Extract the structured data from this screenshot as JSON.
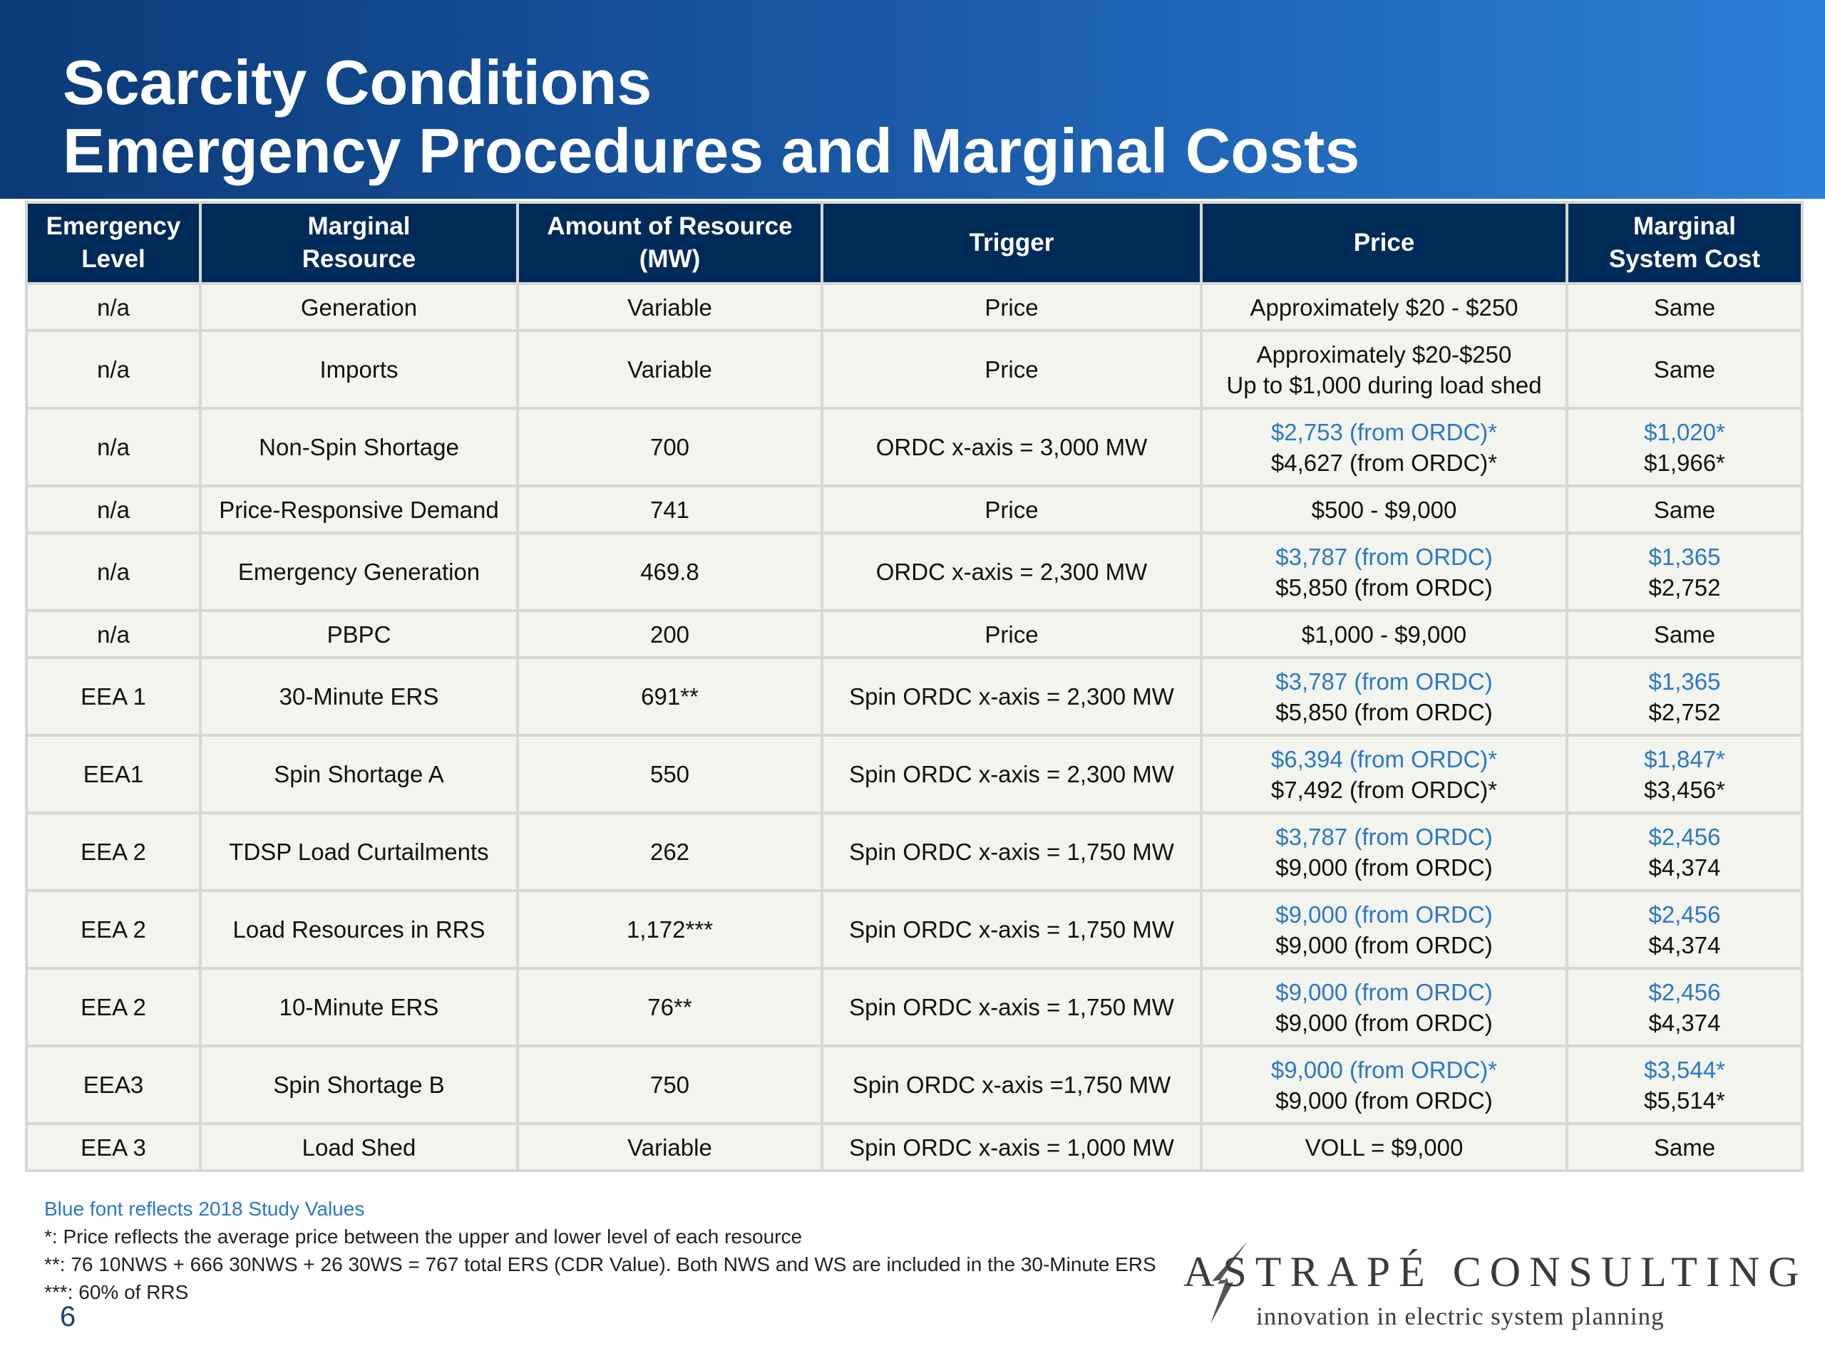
{
  "header": {
    "title_line1": "Scarcity Conditions",
    "title_line2": "Emergency Procedures and Marginal Costs"
  },
  "table": {
    "columns": [
      {
        "line1": "Emergency",
        "line2": "Level"
      },
      {
        "line1": "Marginal",
        "line2": "Resource"
      },
      {
        "line1": "Amount of Resource",
        "line2": "(MW)"
      },
      {
        "line1": "Trigger",
        "line2": ""
      },
      {
        "line1": "Price",
        "line2": ""
      },
      {
        "line1": "Marginal",
        "line2": "System Cost"
      }
    ],
    "rows": [
      {
        "level": "n/a",
        "resource": "Generation",
        "amount": "Variable",
        "trigger": "Price",
        "price_blue": "",
        "price": "Approximately $20 - $250",
        "cost_blue": "",
        "cost": "Same"
      },
      {
        "level": "n/a",
        "resource": "Imports",
        "amount": "Variable",
        "trigger": "Price",
        "price_blue": "",
        "price_line1": "Approximately $20-$250",
        "price": "Up to $1,000 during load shed",
        "cost_blue": "",
        "cost": "Same"
      },
      {
        "level": "n/a",
        "resource": "Non-Spin Shortage",
        "amount": "700",
        "trigger": "ORDC x-axis = 3,000 MW",
        "price_blue": "$2,753 (from ORDC)*",
        "price": "$4,627 (from ORDC)*",
        "cost_blue": "$1,020*",
        "cost": "$1,966*"
      },
      {
        "level": "n/a",
        "resource": "Price-Responsive Demand",
        "amount": "741",
        "trigger": "Price",
        "price_blue": "",
        "price": "$500 - $9,000",
        "cost_blue": "",
        "cost": "Same"
      },
      {
        "level": "n/a",
        "resource": "Emergency Generation",
        "amount": "469.8",
        "trigger": "ORDC x-axis = 2,300 MW",
        "price_blue": "$3,787 (from ORDC)",
        "price": "$5,850 (from ORDC)",
        "cost_blue": "$1,365",
        "cost": "$2,752"
      },
      {
        "level": "n/a",
        "resource": "PBPC",
        "amount": "200",
        "trigger": "Price",
        "price_blue": "",
        "price": "$1,000 - $9,000",
        "cost_blue": "",
        "cost": "Same"
      },
      {
        "level": "EEA 1",
        "resource": "30-Minute ERS",
        "amount": "691**",
        "trigger": "Spin ORDC x-axis = 2,300 MW",
        "price_blue": "$3,787 (from ORDC)",
        "price": "$5,850 (from ORDC)",
        "cost_blue": "$1,365",
        "cost": "$2,752"
      },
      {
        "level": "EEA1",
        "resource": "Spin Shortage A",
        "amount": "550",
        "trigger": "Spin ORDC x-axis = 2,300 MW",
        "price_blue": "$6,394 (from ORDC)*",
        "price": "$7,492 (from ORDC)*",
        "cost_blue": "$1,847*",
        "cost": "$3,456*"
      },
      {
        "level": "EEA 2",
        "resource": "TDSP Load Curtailments",
        "amount": "262",
        "trigger": "Spin ORDC x-axis = 1,750 MW",
        "price_blue": "$3,787 (from ORDC)",
        "price": "$9,000 (from ORDC)",
        "cost_blue": "$2,456",
        "cost": "$4,374"
      },
      {
        "level": "EEA 2",
        "resource": "Load Resources in RRS",
        "amount": "1,172***",
        "trigger": "Spin ORDC x-axis = 1,750 MW",
        "price_blue": "$9,000 (from ORDC)",
        "price": "$9,000 (from ORDC)",
        "cost_blue": "$2,456",
        "cost": "$4,374"
      },
      {
        "level": "EEA 2",
        "resource": "10-Minute ERS",
        "amount": "76**",
        "trigger": "Spin ORDC x-axis = 1,750 MW",
        "price_blue": "$9,000 (from ORDC)",
        "price": "$9,000 (from ORDC)",
        "cost_blue": "$2,456",
        "cost": "$4,374"
      },
      {
        "level": "EEA3",
        "resource": "Spin Shortage B",
        "amount": "750",
        "trigger": "Spin ORDC x-axis =1,750 MW",
        "price_blue": "$9,000 (from ORDC)*",
        "price": "$9,000 (from ORDC)",
        "cost_blue": "$3,544*",
        "cost": "$5,514*"
      },
      {
        "level": "EEA 3",
        "resource": "Load Shed",
        "amount": "Variable",
        "trigger": "Spin ORDC x-axis = 1,000 MW",
        "price_blue": "",
        "price": "VOLL = $9,000",
        "cost_blue": "",
        "cost": "Same"
      }
    ]
  },
  "notes": {
    "blue_note": "Blue font reflects 2018 Study Values",
    "note1": "*: Price reflects the average price between the upper and lower level of each resource",
    "note2": "**: 76 10NWS + 666 30NWS + 26 30WS = 767 total ERS (CDR Value). Both NWS and WS are included in the 30-Minute ERS",
    "note3": "***: 60% of RRS"
  },
  "page_number": "6",
  "logo": {
    "name": "ASTRAPÉ CONSULTING",
    "tagline": "innovation in electric system planning",
    "icon": "lightning-bolt-icon"
  }
}
